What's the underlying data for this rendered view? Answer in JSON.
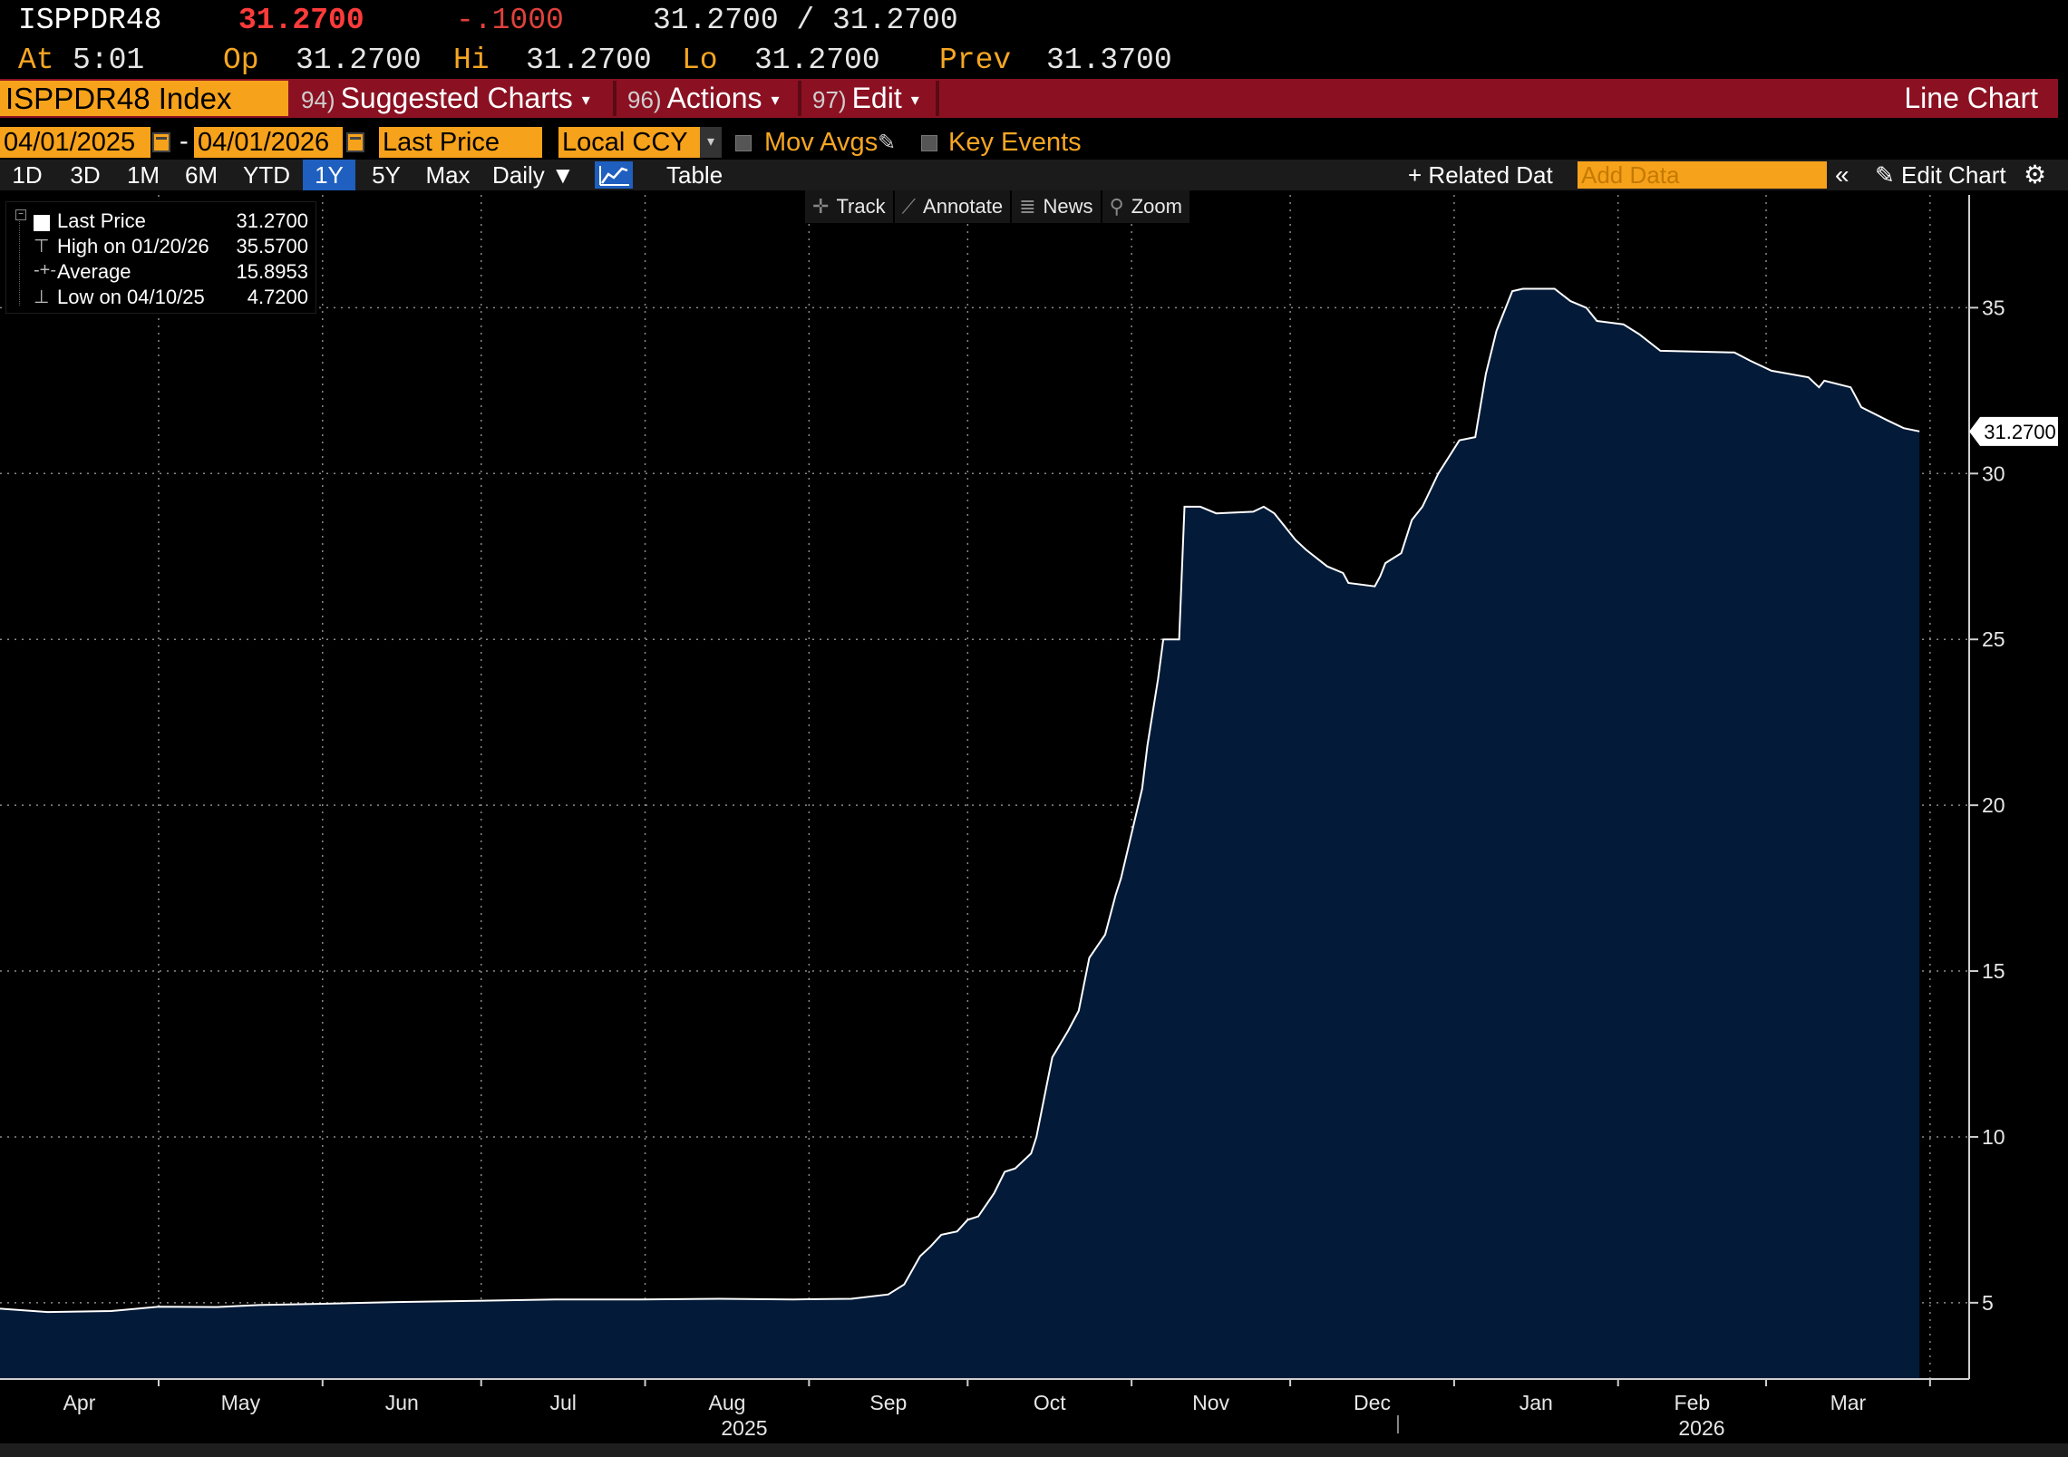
{
  "quote": {
    "ticker": "ISPPDR48",
    "last": "31.2700",
    "change": "-.1000",
    "bid_ask": "31.2700 / 31.2700",
    "time_label": "At",
    "time": "5:01",
    "open_label": "Op",
    "open": "31.2700",
    "high_label": "Hi",
    "high": "31.2700",
    "low_label": "Lo",
    "low": "31.2700",
    "prev_label": "Prev",
    "prev": "31.3700"
  },
  "command_bar": {
    "security": "ISPPDR48 Index",
    "menus": [
      {
        "num": "94)",
        "label": "Suggested Charts"
      },
      {
        "num": "96)",
        "label": "Actions"
      },
      {
        "num": "97)",
        "label": "Edit"
      }
    ],
    "title": "Line Chart"
  },
  "settings": {
    "start_date": "04/01/2025",
    "dash": "-",
    "end_date": "04/01/2026",
    "field": "Last Price",
    "currency": "Local CCY",
    "mov_avgs": "Mov Avgs",
    "key_events": "Key Events"
  },
  "toolbar": {
    "ranges": [
      "1D",
      "3D",
      "1M",
      "6M",
      "YTD",
      "1Y",
      "5Y",
      "Max"
    ],
    "active_range": "1Y",
    "frequency": "Daily",
    "table": "Table",
    "related_data": "Related Dat",
    "add_data_placeholder": "Add Data",
    "edit_chart": "Edit Chart"
  },
  "chart_tools": [
    "Track",
    "Annotate",
    "News",
    "Zoom"
  ],
  "legend": {
    "rows": [
      {
        "name": "Last Price",
        "value": "31.2700"
      },
      {
        "name": "High on 01/20/26",
        "value": "35.5700"
      },
      {
        "name": "Average",
        "value": "15.8953"
      },
      {
        "name": "Low on 04/10/25",
        "value": "4.7200"
      }
    ]
  },
  "colors": {
    "background": "#000000",
    "area_fill": "#031a38",
    "line": "#ffffff",
    "accent_orange": "#f7a21b",
    "command_bar_red": "#8b1122",
    "active_blue": "#1f5fbf"
  },
  "chart_data": {
    "type": "area",
    "title": "",
    "xlabel": "",
    "ylabel": "",
    "x_range": [
      "2025-04-01",
      "2026-03-31"
    ],
    "ylim": [
      2.7,
      38.4
    ],
    "y_ticks": [
      5,
      10,
      15,
      20,
      25,
      30,
      35
    ],
    "x_tick_labels": [
      "Apr",
      "May",
      "Jun",
      "Jul",
      "Aug",
      "Sep",
      "Oct",
      "Nov",
      "Dec",
      "Jan",
      "Feb",
      "Mar"
    ],
    "year_labels": [
      "2025",
      "2026"
    ],
    "last_value_label": "31.2700",
    "grid": true,
    "series": [
      {
        "name": "Last Price",
        "points": [
          [
            "2025-04-01",
            4.82
          ],
          [
            "2025-04-10",
            4.72
          ],
          [
            "2025-04-22",
            4.75
          ],
          [
            "2025-05-01",
            4.88
          ],
          [
            "2025-05-12",
            4.87
          ],
          [
            "2025-05-20",
            4.93
          ],
          [
            "2025-06-01",
            4.97
          ],
          [
            "2025-06-15",
            5.02
          ],
          [
            "2025-06-30",
            5.06
          ],
          [
            "2025-07-15",
            5.1
          ],
          [
            "2025-07-31",
            5.1
          ],
          [
            "2025-08-15",
            5.12
          ],
          [
            "2025-08-29",
            5.1
          ],
          [
            "2025-09-09",
            5.12
          ],
          [
            "2025-09-16",
            5.25
          ],
          [
            "2025-09-19",
            5.55
          ],
          [
            "2025-09-22",
            6.4
          ],
          [
            "2025-09-24",
            6.7
          ],
          [
            "2025-09-26",
            7.05
          ],
          [
            "2025-09-29",
            7.15
          ],
          [
            "2025-10-01",
            7.5
          ],
          [
            "2025-10-03",
            7.6
          ],
          [
            "2025-10-06",
            8.3
          ],
          [
            "2025-10-08",
            8.95
          ],
          [
            "2025-10-10",
            9.05
          ],
          [
            "2025-10-13",
            9.5
          ],
          [
            "2025-10-14",
            10.0
          ],
          [
            "2025-10-16",
            11.6
          ],
          [
            "2025-10-17",
            12.4
          ],
          [
            "2025-10-20",
            13.2
          ],
          [
            "2025-10-22",
            13.8
          ],
          [
            "2025-10-24",
            15.4
          ],
          [
            "2025-10-27",
            16.1
          ],
          [
            "2025-10-29",
            17.3
          ],
          [
            "2025-10-30",
            17.8
          ],
          [
            "2025-11-03",
            20.5
          ],
          [
            "2025-11-04",
            21.8
          ],
          [
            "2025-11-06",
            23.8
          ],
          [
            "2025-11-07",
            25.0
          ],
          [
            "2025-11-10",
            25.0
          ],
          [
            "2025-11-11",
            29.0
          ],
          [
            "2025-11-14",
            29.0
          ],
          [
            "2025-11-17",
            28.8
          ],
          [
            "2025-11-24",
            28.85
          ],
          [
            "2025-11-26",
            29.0
          ],
          [
            "2025-11-28",
            28.8
          ],
          [
            "2025-12-02",
            28.0
          ],
          [
            "2025-12-04",
            27.7
          ],
          [
            "2025-12-08",
            27.2
          ],
          [
            "2025-12-11",
            27.0
          ],
          [
            "2025-12-12",
            26.7
          ],
          [
            "2025-12-17",
            26.6
          ],
          [
            "2025-12-18",
            26.9
          ],
          [
            "2025-12-19",
            27.3
          ],
          [
            "2025-12-22",
            27.6
          ],
          [
            "2025-12-24",
            28.6
          ],
          [
            "2025-12-26",
            29.0
          ],
          [
            "2025-12-29",
            30.0
          ],
          [
            "2025-12-31",
            30.5
          ],
          [
            "2026-01-02",
            31.0
          ],
          [
            "2026-01-05",
            31.1
          ],
          [
            "2026-01-07",
            33.0
          ],
          [
            "2026-01-09",
            34.3
          ],
          [
            "2026-01-12",
            35.5
          ],
          [
            "2026-01-14",
            35.57
          ],
          [
            "2026-01-20",
            35.57
          ],
          [
            "2026-01-23",
            35.2
          ],
          [
            "2026-01-26",
            35.0
          ],
          [
            "2026-01-28",
            34.6
          ],
          [
            "2026-02-02",
            34.5
          ],
          [
            "2026-02-05",
            34.2
          ],
          [
            "2026-02-09",
            33.7
          ],
          [
            "2026-02-23",
            33.65
          ],
          [
            "2026-02-26",
            33.4
          ],
          [
            "2026-03-02",
            33.1
          ],
          [
            "2026-03-09",
            32.9
          ],
          [
            "2026-03-11",
            32.6
          ],
          [
            "2026-03-12",
            32.8
          ],
          [
            "2026-03-17",
            32.6
          ],
          [
            "2026-03-19",
            32.0
          ],
          [
            "2026-03-24",
            31.6
          ],
          [
            "2026-03-27",
            31.37
          ],
          [
            "2026-03-30",
            31.27
          ]
        ]
      }
    ]
  }
}
